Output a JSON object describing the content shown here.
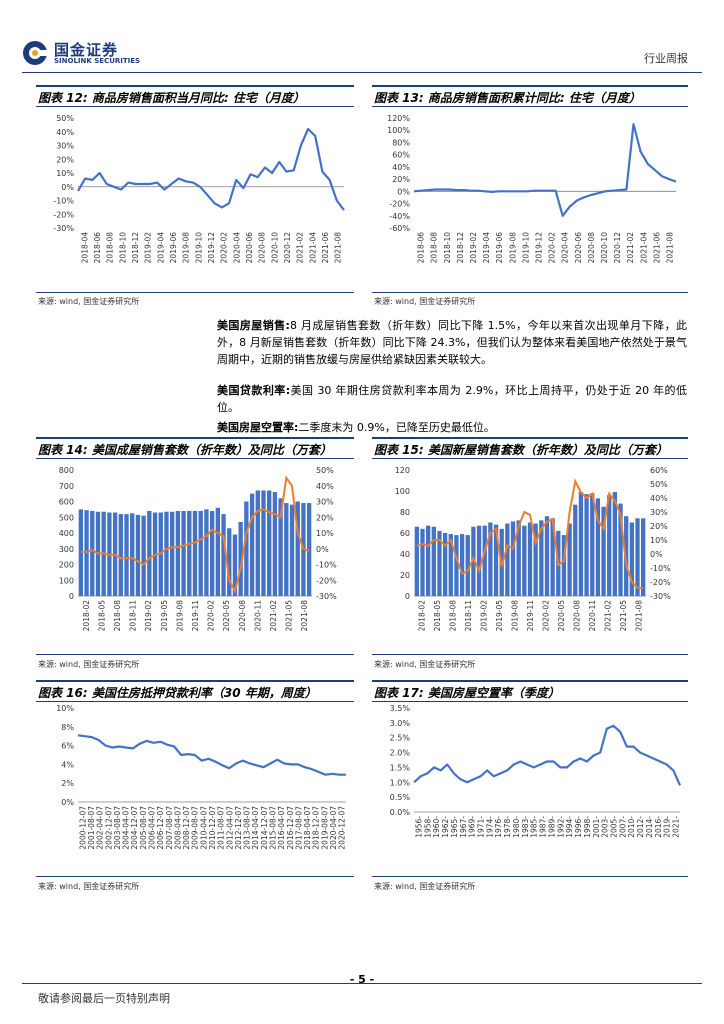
{
  "header": {
    "logo_cn": "国金证券",
    "logo_en": "SINOLINK SECURITIES",
    "report_type": "行业周报"
  },
  "figures": {
    "fig12": {
      "title": "图表 12: 商品房销售面积当月同比: 住宅（月度）",
      "source": "来源: wind, 国金证券研究所"
    },
    "fig13": {
      "title": "图表 13: 商品房销售面积累计同比: 住宅（月度）",
      "source": "来源: wind, 国金证券研究所"
    },
    "fig14": {
      "title": "图表 14: 美国成屋销售套数（折年数）及同比（万套）",
      "source": "来源: wind, 国金证券研究所"
    },
    "fig15": {
      "title": "图表 15: 美国新屋销售套数（折年数）及同比（万套）",
      "source": "来源: wind, 国金证券研究所"
    },
    "fig16": {
      "title": "图表 16: 美国住房抵押贷款利率（30 年期，周度）",
      "source": "来源: wind, 国金证券研究所"
    },
    "fig17": {
      "title": "图表 17: 美国房屋空置率（季度）",
      "source": "来源: wind, 国金证券研究所"
    }
  },
  "text": {
    "p1_label": "美国房屋销售:",
    "p1_body": "8 月成屋销售套数（折年数）同比下降 1.5%，今年以来首次出现单月下降，此外，8 月新屋销售套数（折年数）同比下降 24.3%，但我们认为整体来看美国地产依然处于景气周期中，近期的销售放缓与房屋供给紧缺因素关联较大。",
    "p2_label": "美国贷款利率:",
    "p2_body": "美国 30 年期住房贷款利率本周为 2.9%，环比上周持平，仍处于近 20 年的低位。",
    "p3_label": "美国房屋空置率:",
    "p3_body": "二季度末为 0.9%，已降至历史最低位。"
  },
  "footer": {
    "page": "- 5 -",
    "note": "敬请参阅最后一页特别声明"
  },
  "colors": {
    "line": "#4472c4",
    "bar": "#4472c4",
    "yoy": "#ed7d31",
    "brand": "#1d3c78"
  },
  "chart_data": [
    {
      "id": "fig12",
      "type": "line",
      "title": "商品房销售面积当月同比: 住宅（月度）",
      "ylim": [
        -30,
        50
      ],
      "yticks": [
        "50%",
        "40%",
        "30%",
        "20%",
        "10%",
        "0%",
        "-10%",
        "-20%",
        "-30%"
      ],
      "xticks": [
        "2018-04",
        "2018-06",
        "2018-08",
        "2018-10",
        "2018-12",
        "2019-02",
        "2019-04",
        "2019-06",
        "2019-08",
        "2019-10",
        "2019-12",
        "2020-02",
        "2020-04",
        "2020-06",
        "2020-08",
        "2020-10",
        "2020-12",
        "2021-02",
        "2021-04",
        "2021-06",
        "2021-08"
      ],
      "values": [
        -3,
        6,
        5,
        10,
        2,
        0,
        -2,
        3,
        2,
        2,
        2,
        3,
        -2,
        2,
        6,
        4,
        3,
        0,
        -6,
        -12,
        -15,
        -12,
        5,
        -1,
        9,
        7,
        14,
        10,
        18,
        11,
        12,
        30,
        42,
        37,
        11,
        5,
        -10,
        -17
      ]
    },
    {
      "id": "fig13",
      "type": "line",
      "title": "商品房销售面积累计同比: 住宅（月度）",
      "ylim": [
        -60,
        120
      ],
      "yticks": [
        "120%",
        "100%",
        "80%",
        "60%",
        "40%",
        "20%",
        "0%",
        "-20%",
        "-40%",
        "-60%"
      ],
      "xticks": [
        "2018-06",
        "2018-08",
        "2018-10",
        "2018-12",
        "2019-02",
        "2019-04",
        "2019-06",
        "2019-08",
        "2019-10",
        "2019-12",
        "2020-02",
        "2020-04",
        "2020-06",
        "2020-08",
        "2020-10",
        "2020-12",
        "2021-02",
        "2021-04",
        "2021-06",
        "2021-08"
      ],
      "values": [
        0,
        1,
        2,
        3,
        3,
        3,
        2,
        2,
        1,
        1,
        0,
        -1,
        0,
        0,
        0,
        0,
        0,
        1,
        1,
        1,
        1,
        -40,
        -25,
        -15,
        -10,
        -6,
        -3,
        0,
        1,
        2,
        3,
        110,
        65,
        45,
        35,
        25,
        20,
        16
      ]
    },
    {
      "id": "fig14",
      "type": "bar+line",
      "title": "美国成屋销售套数（折年数）及同比（万套）",
      "ylim": [
        0,
        800
      ],
      "y2lim": [
        -30,
        50
      ],
      "yticks": [
        "800",
        "700",
        "600",
        "500",
        "400",
        "300",
        "200",
        "100",
        "0"
      ],
      "y2ticks": [
        "50%",
        "40%",
        "30%",
        "20%",
        "10%",
        "0%",
        "-10%",
        "-20%",
        "-30%"
      ],
      "xticks": [
        "2018-02",
        "2018-05",
        "2018-08",
        "2018-11",
        "2019-02",
        "2019-05",
        "2019-08",
        "2019-11",
        "2020-02",
        "2020-05",
        "2020-08",
        "2020-11",
        "2021-02",
        "2021-05",
        "2021-08"
      ],
      "values": [
        550,
        545,
        540,
        535,
        535,
        530,
        530,
        520,
        520,
        525,
        515,
        510,
        540,
        530,
        530,
        535,
        535,
        540,
        540,
        540,
        540,
        540,
        550,
        540,
        560,
        520,
        430,
        390,
        470,
        600,
        650,
        670,
        670,
        670,
        660,
        620,
        590,
        580,
        600,
        590,
        590
      ],
      "yoy": [
        -2,
        -2,
        -1,
        -3,
        -3,
        -4,
        -4,
        -6,
        -6,
        -6,
        -8,
        -10,
        -6,
        -4,
        -3,
        0,
        1,
        1,
        2,
        3,
        4,
        6,
        8,
        12,
        10,
        8,
        -20,
        -27,
        -12,
        10,
        20,
        24,
        25,
        23,
        22,
        20,
        45,
        40,
        10,
        0,
        -1.5
      ]
    },
    {
      "id": "fig15",
      "type": "bar+line",
      "title": "美国新屋销售套数（折年数）及同比（万套）",
      "ylim": [
        0,
        120
      ],
      "y2lim": [
        -30,
        60
      ],
      "yticks": [
        "120",
        "100",
        "80",
        "60",
        "40",
        "20",
        "0"
      ],
      "y2ticks": [
        "60%",
        "50%",
        "40%",
        "30%",
        "20%",
        "10%",
        "0%",
        "-10%",
        "-20%",
        "-30%"
      ],
      "xticks": [
        "2018-02",
        "2018-05",
        "2018-08",
        "2018-11",
        "2019-02",
        "2019-05",
        "2019-08",
        "2019-11",
        "2020-02",
        "2020-05",
        "2020-08",
        "2020-11",
        "2021-02",
        "2021-05",
        "2021-08"
      ],
      "values": [
        66,
        64,
        67,
        66,
        62,
        60,
        59,
        58,
        59,
        58,
        66,
        67,
        67,
        70,
        68,
        64,
        69,
        71,
        72,
        67,
        70,
        69,
        72,
        76,
        74,
        62,
        58,
        69,
        87,
        99,
        97,
        98,
        93,
        85,
        96,
        99,
        88,
        76,
        70,
        74,
        74
      ],
      "yoy": [
        6,
        7,
        6,
        10,
        10,
        6,
        10,
        -3,
        -14,
        -12,
        -3,
        -12,
        2,
        15,
        18,
        -9,
        6,
        4,
        20,
        30,
        28,
        8,
        18,
        23,
        25,
        -8,
        -5,
        30,
        52,
        44,
        40,
        43,
        24,
        18,
        43,
        38,
        28,
        -8,
        -20,
        -24,
        -24.3
      ]
    },
    {
      "id": "fig16",
      "type": "line",
      "title": "美国住房抵押贷款利率（30 年期，周度）",
      "ylim": [
        0,
        10
      ],
      "yticks": [
        "10%",
        "8%",
        "6%",
        "4%",
        "2%",
        "0%"
      ],
      "xticks": [
        "2000-12-07",
        "2001-08-07",
        "2002-04-07",
        "2002-12-07",
        "2003-08-07",
        "2004-04-07",
        "2004-12-07",
        "2005-08-07",
        "2006-04-07",
        "2006-12-07",
        "2007-08-07",
        "2008-04-07",
        "2008-12-07",
        "2009-08-07",
        "2010-04-07",
        "2010-12-07",
        "2011-08-07",
        "2012-04-07",
        "2012-12-07",
        "2013-08-07",
        "2014-04-07",
        "2014-12-07",
        "2015-08-07",
        "2016-04-07",
        "2016-12-07",
        "2017-08-07",
        "2018-04-07",
        "2018-12-07",
        "2019-08-07",
        "2020-04-07",
        "2020-12-07"
      ],
      "values": [
        7.1,
        7.0,
        6.9,
        6.6,
        6.0,
        5.8,
        5.9,
        5.8,
        5.7,
        6.2,
        6.5,
        6.3,
        6.4,
        6.1,
        5.9,
        5.0,
        5.1,
        5.0,
        4.4,
        4.6,
        4.3,
        3.9,
        3.6,
        4.1,
        4.4,
        4.1,
        3.9,
        3.7,
        4.1,
        4.5,
        4.1,
        4.0,
        4.0,
        3.7,
        3.5,
        3.2,
        2.9,
        3.0,
        2.9,
        2.9
      ]
    },
    {
      "id": "fig17",
      "type": "line",
      "title": "美国房屋空置率（季度）",
      "ylim": [
        0,
        3.5
      ],
      "yticks": [
        "3.5%",
        "3.0%",
        "2.5%",
        "2.0%",
        "1.5%",
        "1.0%",
        "0.5%",
        "0.0%"
      ],
      "xticks": [
        "1956-",
        "1958-",
        "1960-",
        "1962-",
        "1965-",
        "1967-",
        "1969-",
        "1971-",
        "1974-",
        "1976-",
        "1978-",
        "1980-",
        "1983-",
        "1985-",
        "1987-",
        "1989-",
        "1992-",
        "1994-",
        "1996-",
        "1998-",
        "2001-",
        "2003-",
        "2005-",
        "2007-",
        "2010-",
        "2012-",
        "2014-",
        "2016-",
        "2019-",
        "2021-"
      ],
      "values": [
        1.0,
        1.2,
        1.3,
        1.5,
        1.4,
        1.6,
        1.3,
        1.1,
        1.0,
        1.1,
        1.2,
        1.4,
        1.2,
        1.3,
        1.4,
        1.6,
        1.7,
        1.6,
        1.5,
        1.6,
        1.7,
        1.7,
        1.5,
        1.5,
        1.7,
        1.8,
        1.7,
        1.9,
        2.0,
        2.8,
        2.9,
        2.7,
        2.2,
        2.2,
        2.0,
        1.9,
        1.8,
        1.7,
        1.6,
        1.4,
        0.9
      ]
    }
  ]
}
